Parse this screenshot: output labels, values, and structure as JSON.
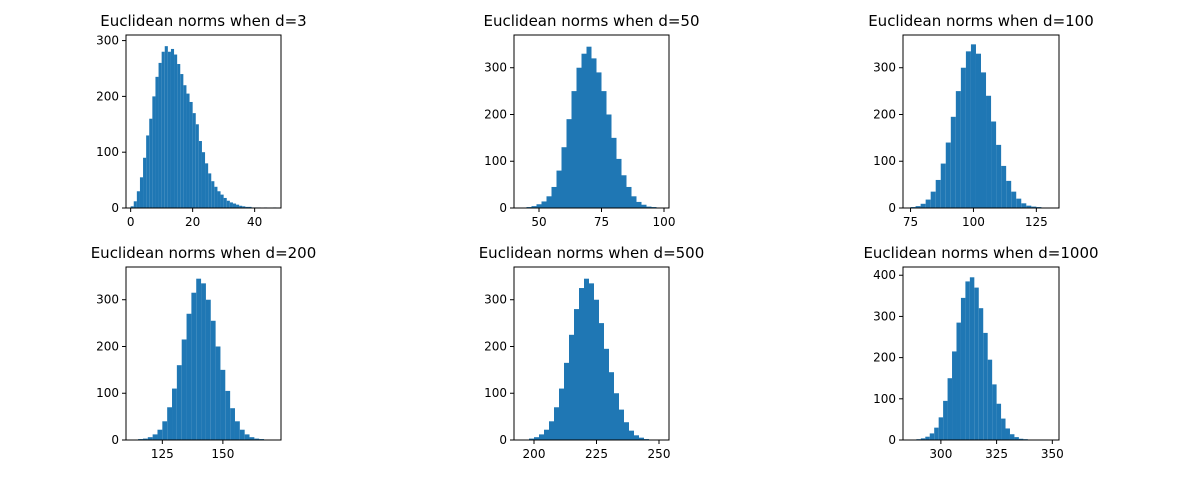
{
  "colors": {
    "bar": "#1f77b4",
    "axis": "#000000",
    "background": "#ffffff"
  },
  "chart_data": [
    {
      "type": "bar",
      "title": "Euclidean norms when d=3",
      "xlim": [
        -1.5,
        48.5
      ],
      "ylim": [
        0,
        310
      ],
      "xticks": [
        0,
        20,
        40
      ],
      "yticks": [
        0,
        100,
        200,
        300
      ],
      "x": [
        0.5,
        1.5,
        2.5,
        3.5,
        4.5,
        5.5,
        6.5,
        7.5,
        8.5,
        9.5,
        10.5,
        11.5,
        12.5,
        13.5,
        14.5,
        15.5,
        16.5,
        17.5,
        18.5,
        19.5,
        20.5,
        21.5,
        22.5,
        23.5,
        24.5,
        25.5,
        26.5,
        27.5,
        28.5,
        29.5,
        30.5,
        31.5,
        32.5,
        33.5,
        34.5,
        35.5,
        36.5,
        37.5,
        38.5,
        39.5,
        40.5,
        41.5,
        42.5,
        43.5,
        44.5,
        45.5,
        46.5
      ],
      "values": [
        3,
        12,
        30,
        55,
        90,
        130,
        160,
        200,
        235,
        260,
        280,
        290,
        280,
        285,
        275,
        258,
        240,
        220,
        205,
        190,
        170,
        150,
        120,
        100,
        80,
        62,
        48,
        38,
        30,
        24,
        18,
        13,
        10,
        8,
        6,
        4,
        3,
        2,
        2,
        1,
        1,
        1,
        0,
        1,
        0,
        0,
        1
      ]
    },
    {
      "type": "bar",
      "title": "Euclidean norms when d=50",
      "xlim": [
        40,
        102
      ],
      "ylim": [
        0,
        370
      ],
      "xticks": [
        50,
        75,
        100
      ],
      "yticks": [
        0,
        100,
        200,
        300
      ],
      "x": [
        42,
        44,
        46,
        48,
        50,
        52,
        54,
        56,
        58,
        60,
        62,
        64,
        66,
        68,
        70,
        72,
        74,
        76,
        78,
        80,
        82,
        84,
        86,
        88,
        90,
        92,
        94,
        96,
        98
      ],
      "values": [
        1,
        1,
        2,
        4,
        8,
        14,
        25,
        45,
        80,
        130,
        190,
        250,
        300,
        330,
        345,
        320,
        290,
        250,
        200,
        150,
        105,
        70,
        45,
        25,
        13,
        7,
        3,
        2,
        1
      ]
    },
    {
      "type": "bar",
      "title": "Euclidean norms when d=100",
      "xlim": [
        72,
        134
      ],
      "ylim": [
        0,
        370
      ],
      "xticks": [
        75,
        100,
        125
      ],
      "yticks": [
        0,
        100,
        200,
        300
      ],
      "x": [
        74,
        76,
        78,
        80,
        82,
        84,
        86,
        88,
        90,
        92,
        94,
        96,
        98,
        100,
        102,
        104,
        106,
        108,
        110,
        112,
        114,
        116,
        118,
        120,
        122,
        124,
        126,
        128,
        130
      ],
      "values": [
        1,
        2,
        4,
        9,
        18,
        35,
        60,
        95,
        140,
        195,
        250,
        300,
        335,
        350,
        330,
        290,
        240,
        185,
        135,
        90,
        58,
        35,
        20,
        10,
        5,
        3,
        2,
        1,
        1
      ]
    },
    {
      "type": "bar",
      "title": "Euclidean norms when d=200",
      "xlim": [
        110,
        174
      ],
      "ylim": [
        0,
        370
      ],
      "xticks": [
        125,
        150
      ],
      "yticks": [
        0,
        100,
        200,
        300
      ],
      "x": [
        112,
        114,
        116,
        118,
        120,
        122,
        124,
        126,
        128,
        130,
        132,
        134,
        136,
        138,
        140,
        142,
        144,
        146,
        148,
        150,
        152,
        154,
        156,
        158,
        160,
        162,
        164,
        166,
        168
      ],
      "values": [
        1,
        1,
        2,
        3,
        6,
        12,
        22,
        40,
        70,
        110,
        160,
        215,
        270,
        315,
        345,
        335,
        300,
        255,
        200,
        150,
        105,
        68,
        40,
        22,
        12,
        6,
        3,
        2,
        1
      ]
    },
    {
      "type": "bar",
      "title": "Euclidean norms when d=500",
      "xlim": [
        192,
        254
      ],
      "ylim": [
        0,
        370
      ],
      "xticks": [
        200,
        225,
        250
      ],
      "yticks": [
        0,
        100,
        200,
        300
      ],
      "x": [
        195,
        197,
        199,
        201,
        203,
        205,
        207,
        209,
        211,
        213,
        215,
        217,
        219,
        221,
        223,
        225,
        227,
        229,
        231,
        233,
        235,
        237,
        239,
        241,
        243,
        245,
        247,
        249
      ],
      "values": [
        1,
        1,
        3,
        6,
        12,
        22,
        40,
        70,
        110,
        165,
        225,
        280,
        325,
        345,
        335,
        300,
        250,
        195,
        145,
        100,
        65,
        38,
        20,
        10,
        5,
        2,
        1,
        1
      ]
    },
    {
      "type": "bar",
      "title": "Euclidean norms when d=1000",
      "xlim": [
        283,
        353
      ],
      "ylim": [
        0,
        420
      ],
      "xticks": [
        300,
        325,
        350
      ],
      "yticks": [
        0,
        100,
        200,
        300,
        400
      ],
      "x": [
        286,
        288,
        290,
        292,
        294,
        296,
        298,
        300,
        302,
        304,
        306,
        308,
        310,
        312,
        314,
        316,
        318,
        320,
        322,
        324,
        326,
        328,
        330,
        332,
        334,
        336,
        338,
        340,
        342,
        344
      ],
      "values": [
        1,
        1,
        2,
        4,
        8,
        16,
        30,
        55,
        95,
        150,
        215,
        285,
        345,
        385,
        395,
        370,
        320,
        260,
        195,
        135,
        88,
        52,
        28,
        14,
        7,
        3,
        2,
        1,
        1,
        1
      ]
    }
  ]
}
